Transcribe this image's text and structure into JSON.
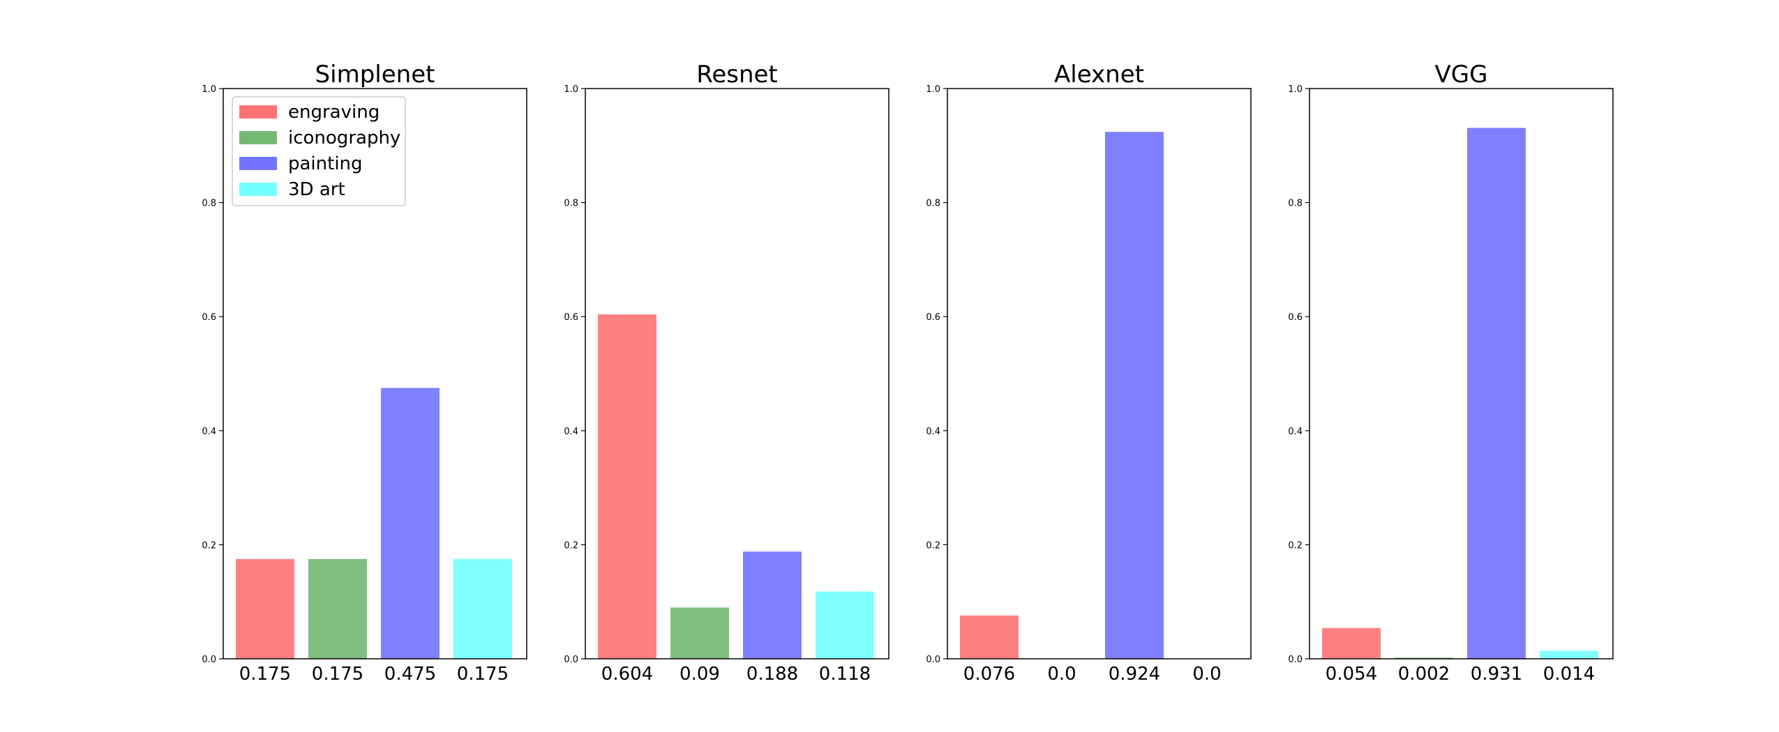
{
  "chart_data": [
    {
      "type": "bar",
      "title": "Simplenet",
      "categories": [
        "0.175",
        "0.175",
        "0.475",
        "0.175"
      ],
      "values": [
        0.175,
        0.175,
        0.475,
        0.175
      ],
      "xlabel": "",
      "ylabel": "",
      "ylim": [
        0,
        1.0
      ],
      "yticks": [
        "0.0",
        "0.2",
        "0.4",
        "0.6",
        "0.8",
        "1.0"
      ],
      "grid": false,
      "legend": "upper-left"
    },
    {
      "type": "bar",
      "title": "Resnet",
      "categories": [
        "0.604",
        "0.09",
        "0.188",
        "0.118"
      ],
      "values": [
        0.604,
        0.09,
        0.188,
        0.118
      ],
      "xlabel": "",
      "ylabel": "",
      "ylim": [
        0,
        1.0
      ],
      "yticks": [
        "0.0",
        "0.2",
        "0.4",
        "0.6",
        "0.8",
        "1.0"
      ],
      "grid": false
    },
    {
      "type": "bar",
      "title": "Alexnet",
      "categories": [
        "0.076",
        "0.0",
        "0.924",
        "0.0"
      ],
      "values": [
        0.076,
        0.0,
        0.924,
        0.0
      ],
      "xlabel": "",
      "ylabel": "",
      "ylim": [
        0,
        1.0
      ],
      "yticks": [
        "0.0",
        "0.2",
        "0.4",
        "0.6",
        "0.8",
        "1.0"
      ],
      "grid": false
    },
    {
      "type": "bar",
      "title": "VGG",
      "categories": [
        "0.054",
        "0.002",
        "0.931",
        "0.014"
      ],
      "values": [
        0.054,
        0.002,
        0.931,
        0.014
      ],
      "xlabel": "",
      "ylabel": "",
      "ylim": [
        0,
        1.0
      ],
      "yticks": [
        "0.0",
        "0.2",
        "0.4",
        "0.6",
        "0.8",
        "1.0"
      ],
      "grid": false
    }
  ],
  "legend": [
    {
      "label": "engraving",
      "color": "#ff0000"
    },
    {
      "label": "iconography",
      "color": "#008000"
    },
    {
      "label": "painting",
      "color": "#0000ff"
    },
    {
      "label": "3D art",
      "color": "#00ffff"
    }
  ],
  "bar_colors": [
    "#ff8080",
    "#80bf80",
    "#8080ff",
    "#80ffff"
  ]
}
